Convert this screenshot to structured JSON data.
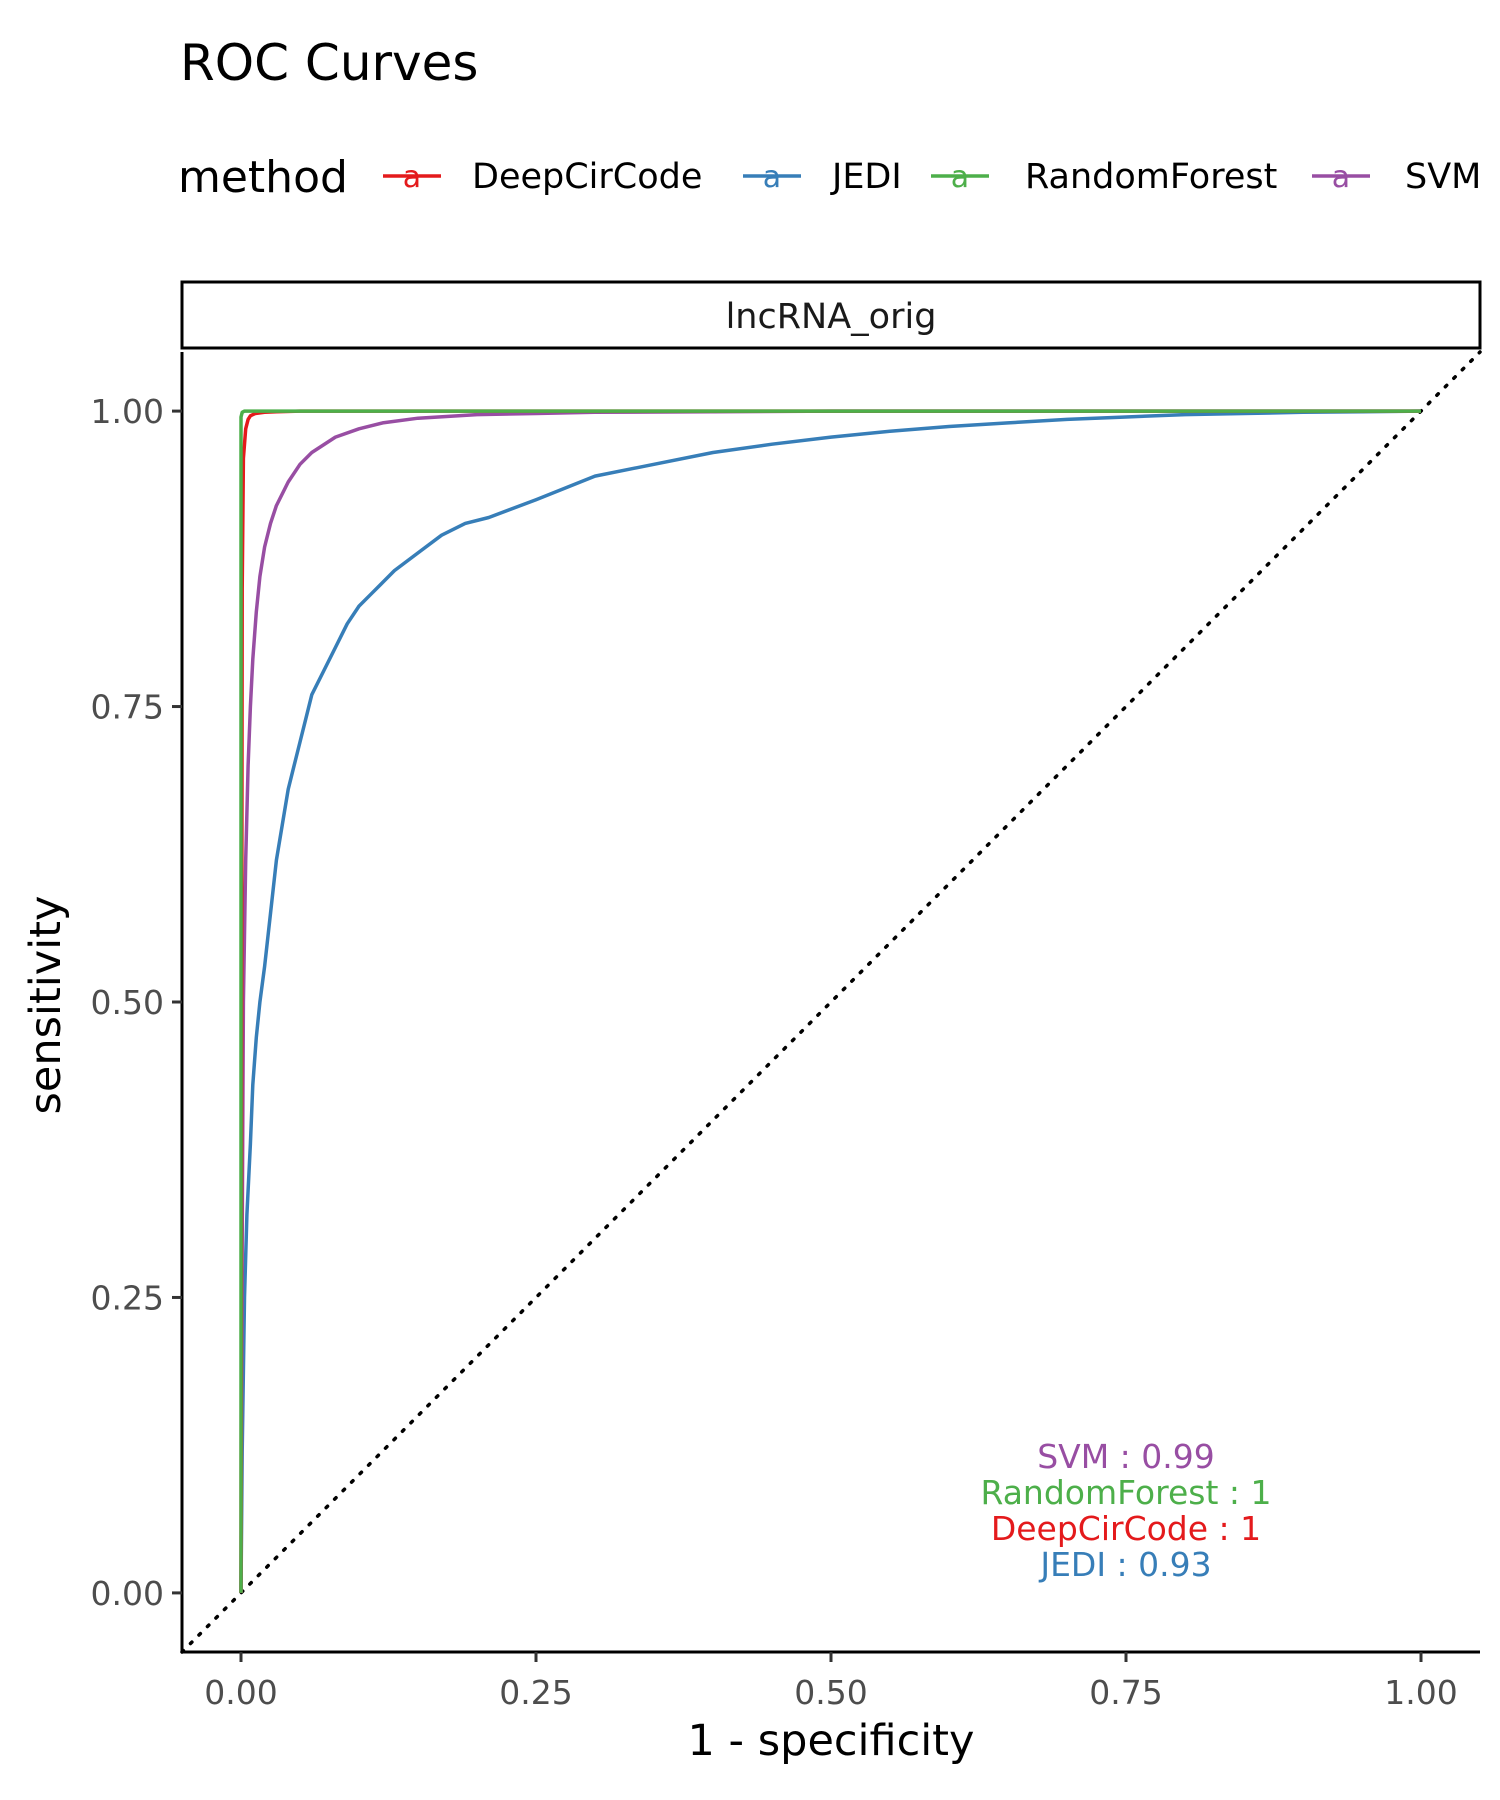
{
  "chart_data": {
    "type": "line",
    "title": "ROC Curves",
    "facet_label": "lncRNA_orig",
    "xlabel": "1 - specificity",
    "ylabel": "sensitivity",
    "xlim": [
      -0.05,
      1.05
    ],
    "ylim": [
      -0.05,
      1.05
    ],
    "x_ticks": [
      0,
      0.25,
      0.5,
      0.75,
      1
    ],
    "x_tick_labels": [
      "0.00",
      "0.25",
      "0.50",
      "0.75",
      "1.00"
    ],
    "y_ticks": [
      0,
      0.25,
      0.5,
      0.75,
      1
    ],
    "y_tick_labels": [
      "0.00",
      "0.25",
      "0.50",
      "0.75",
      "1.00"
    ],
    "grid": false,
    "reference_line": {
      "style": "dotted",
      "from": [
        -0.05,
        -0.05
      ],
      "to": [
        1.05,
        1.05
      ]
    },
    "legend": {
      "title": "method",
      "position": "top",
      "key_glyph": "a",
      "entries": [
        {
          "label": "DeepCirCode",
          "color": "#e41a1c"
        },
        {
          "label": "JEDI",
          "color": "#377eb8"
        },
        {
          "label": "RandomForest",
          "color": "#4daf4a"
        },
        {
          "label": "SVM",
          "color": "#984ea3"
        }
      ]
    },
    "series": [
      {
        "name": "JEDI",
        "color": "#377eb8",
        "x": [
          0,
          0.001,
          0.003,
          0.005,
          0.008,
          0.01,
          0.013,
          0.016,
          0.02,
          0.025,
          0.03,
          0.035,
          0.04,
          0.045,
          0.05,
          0.055,
          0.06,
          0.07,
          0.08,
          0.09,
          0.1,
          0.11,
          0.12,
          0.13,
          0.15,
          0.17,
          0.19,
          0.21,
          0.25,
          0.3,
          0.35,
          0.4,
          0.45,
          0.5,
          0.55,
          0.6,
          0.65,
          0.7,
          0.75,
          0.8,
          0.85,
          0.9,
          0.95,
          1
        ],
        "y": [
          0,
          0.12,
          0.25,
          0.32,
          0.38,
          0.43,
          0.47,
          0.5,
          0.53,
          0.575,
          0.62,
          0.65,
          0.68,
          0.7,
          0.72,
          0.74,
          0.76,
          0.78,
          0.8,
          0.82,
          0.835,
          0.845,
          0.855,
          0.865,
          0.88,
          0.895,
          0.905,
          0.91,
          0.925,
          0.945,
          0.955,
          0.965,
          0.972,
          0.978,
          0.983,
          0.987,
          0.99,
          0.993,
          0.995,
          0.997,
          0.998,
          0.999,
          0.9995,
          1
        ]
      },
      {
        "name": "SVM",
        "color": "#984ea3",
        "x": [
          0,
          0.001,
          0.002,
          0.004,
          0.006,
          0.008,
          0.01,
          0.013,
          0.016,
          0.02,
          0.025,
          0.03,
          0.04,
          0.05,
          0.06,
          0.08,
          0.1,
          0.12,
          0.15,
          0.2,
          0.25,
          0.3,
          0.4,
          0.5,
          0.6,
          0.8,
          1
        ],
        "y": [
          0,
          0.3,
          0.5,
          0.62,
          0.7,
          0.75,
          0.79,
          0.83,
          0.86,
          0.885,
          0.905,
          0.92,
          0.94,
          0.955,
          0.965,
          0.978,
          0.985,
          0.99,
          0.994,
          0.997,
          0.998,
          0.999,
          0.9995,
          1,
          1,
          1,
          1
        ]
      },
      {
        "name": "DeepCirCode",
        "color": "#e41a1c",
        "x": [
          0,
          0.001,
          0.002,
          0.004,
          0.006,
          0.008,
          0.012,
          0.02,
          0.03,
          0.05,
          0.1,
          0.3,
          0.6,
          1
        ],
        "y": [
          0,
          0.85,
          0.96,
          0.985,
          0.993,
          0.996,
          0.998,
          0.999,
          0.9995,
          1,
          1,
          1,
          1,
          1
        ]
      },
      {
        "name": "RandomForest",
        "color": "#4daf4a",
        "x": [
          0,
          0,
          0.001,
          0.003,
          0.01,
          0.05,
          0.2,
          0.5,
          1
        ],
        "y": [
          0,
          0.995,
          0.999,
          1,
          1,
          1,
          1,
          1,
          1
        ]
      }
    ],
    "annotations": [
      {
        "text": "SVM : 0.99",
        "color": "#984ea3"
      },
      {
        "text": "RandomForest : 1",
        "color": "#4daf4a"
      },
      {
        "text": "DeepCirCode : 1",
        "color": "#e41a1c"
      },
      {
        "text": "JEDI : 0.93",
        "color": "#377eb8"
      }
    ]
  }
}
